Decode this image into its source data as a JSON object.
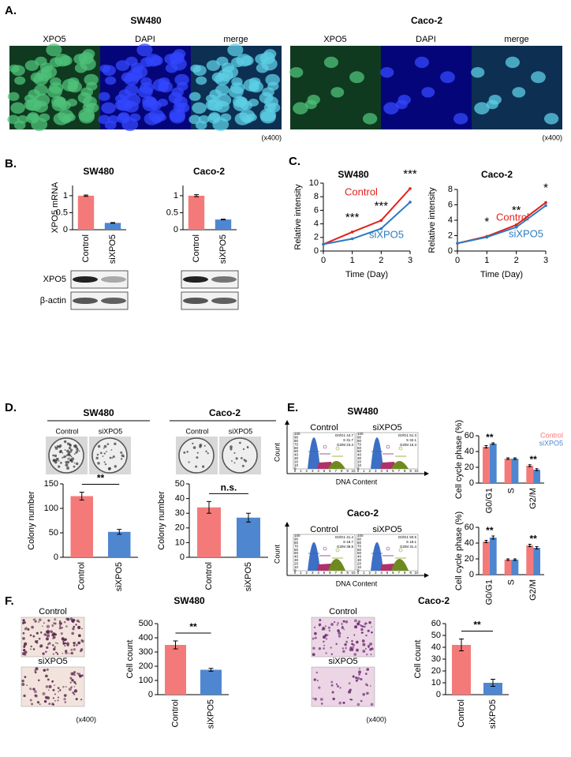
{
  "panel_labels": [
    "A.",
    "B.",
    "C.",
    "D.",
    "E.",
    "F."
  ],
  "panel_a": {
    "cell_lines": [
      "SW480",
      "Caco-2"
    ],
    "channels": [
      "XPO5",
      "DAPI",
      "merge"
    ],
    "magnification": "(x400)"
  },
  "panel_b": {
    "blot_labels": [
      "XPO5",
      "β-actin"
    ]
  },
  "panel_d": {
    "plate_labels": [
      "Control",
      "siXPO5"
    ]
  },
  "panel_e": {
    "titles": [
      "SW480",
      "Caco-2"
    ],
    "flow_labels": [
      "Control",
      "siXPO5"
    ],
    "count_label": "Count",
    "x_label": "DNA Content",
    "flow_xticks": [
      0,
      1,
      2,
      3,
      4,
      5,
      6,
      7,
      8,
      9,
      10
    ],
    "flow_yticks": [
      0,
      10,
      20,
      30,
      40,
      50,
      60,
      70,
      80,
      90,
      100
    ],
    "flow_stats": [
      [
        [
          "G0/G1 44.7",
          "S 31.7",
          "G2/M 23.3"
        ],
        [
          "G0/G1 51.3",
          "S 32.1",
          "G2/M 16.3"
        ]
      ],
      [
        [
          "G0/G1 41.4",
          "S 18.7",
          "G2/M 39.9"
        ],
        [
          "G0/G1 50.5",
          "S 18.1",
          "G2/M 31.4"
        ]
      ]
    ]
  },
  "panel_f": {
    "titles": [
      "SW480",
      "Caco-2"
    ],
    "image_labels": [
      "Control",
      "siXPO5"
    ],
    "magnification": "(x400)"
  },
  "chart_data": [
    {
      "type": "bar",
      "title": "SW480",
      "categories": [
        "Control",
        "siXPO5"
      ],
      "values": [
        1,
        0.2
      ],
      "errors": [
        0.02,
        0.01
      ],
      "colors": [
        "#f47a7a",
        "#4f86d0"
      ],
      "ylim": [
        0,
        1.3
      ],
      "yticks": [
        0,
        0.5,
        1
      ],
      "ylabel": "XPO5 mRNA"
    },
    {
      "type": "bar",
      "title": "Caco-2",
      "categories": [
        "Control",
        "siXPO5"
      ],
      "values": [
        1,
        0.3
      ],
      "errors": [
        0.03,
        0.01
      ],
      "colors": [
        "#f47a7a",
        "#4f86d0"
      ],
      "ylim": [
        0,
        1.3
      ],
      "yticks": [
        0,
        0.5,
        1
      ]
    },
    {
      "type": "line",
      "title": "SW480",
      "x": [
        0,
        1,
        2,
        3
      ],
      "xlim": [
        0,
        3
      ],
      "xticks": [
        0,
        1,
        2,
        3
      ],
      "series": [
        {
          "name": "Control",
          "color": "#e3211c",
          "values": [
            1,
            2.8,
            4.5,
            9.2
          ]
        },
        {
          "name": "siXPO5",
          "color": "#2b7bc1",
          "values": [
            1,
            1.8,
            3.3,
            7.2
          ]
        }
      ],
      "ylim": [
        0,
        10
      ],
      "yticks": [
        0,
        2,
        4,
        6,
        8,
        10
      ],
      "xlabel": "Time (Day)",
      "ylabel": "Relative intensity",
      "annotations": [
        null,
        "***",
        "***",
        "***"
      ]
    },
    {
      "type": "line",
      "title": "Caco-2",
      "x": [
        0,
        1,
        2,
        3
      ],
      "xlim": [
        0,
        3
      ],
      "xticks": [
        0,
        1,
        2,
        3
      ],
      "series": [
        {
          "name": "Control",
          "color": "#e3211c",
          "values": [
            1,
            1.9,
            3.4,
            6.3
          ]
        },
        {
          "name": "siXPO5",
          "color": "#2b7bc1",
          "values": [
            1,
            1.8,
            3.1,
            5.9
          ]
        }
      ],
      "ylim": [
        0,
        8
      ],
      "yticks": [
        0,
        2,
        4,
        6,
        8
      ],
      "xlabel": "Time (Day)",
      "ylabel": "Relative intensity",
      "annotations": [
        null,
        "*",
        "**",
        "*"
      ]
    },
    {
      "type": "bar",
      "title": "SW480",
      "categories": [
        "Control",
        "siXPO5"
      ],
      "values": [
        125,
        52
      ],
      "errors": [
        8,
        5
      ],
      "colors": [
        "#f47a7a",
        "#4f86d0"
      ],
      "ylim": [
        0,
        150
      ],
      "yticks": [
        0,
        50,
        100,
        150
      ],
      "ylabel": "Colony number",
      "significance": "**"
    },
    {
      "type": "bar",
      "title": "Caco-2",
      "categories": [
        "Control",
        "siXPO5"
      ],
      "values": [
        34,
        27
      ],
      "errors": [
        4,
        3
      ],
      "colors": [
        "#f47a7a",
        "#4f86d0"
      ],
      "ylim": [
        0,
        50
      ],
      "yticks": [
        0,
        10,
        20,
        30,
        40,
        50
      ],
      "ylabel": "Colony number",
      "significance": "n.s."
    },
    {
      "type": "bar",
      "categories": [
        "G0/G1",
        "S",
        "G2/M"
      ],
      "series": [
        {
          "name": "Control",
          "color": "#f47a7a",
          "values": [
            46,
            31,
            22
          ],
          "errors": [
            1.5,
            1,
            1.2
          ]
        },
        {
          "name": "siXPO5",
          "color": "#4f86d0",
          "values": [
            50,
            31,
            17
          ],
          "errors": [
            1,
            1,
            1.2
          ]
        }
      ],
      "ylim": [
        0,
        60
      ],
      "yticks": [
        0,
        20,
        40,
        60
      ],
      "ylabel": "Cell cycle phase (%)",
      "legend": "top-right",
      "annotations": [
        "**",
        null,
        "**"
      ]
    },
    {
      "type": "bar",
      "categories": [
        "G0/G1",
        "S",
        "G2/M"
      ],
      "series": [
        {
          "color": "#f47a7a",
          "values": [
            42,
            19,
            37
          ],
          "errors": [
            1.5,
            1,
            1.5
          ]
        },
        {
          "color": "#4f86d0",
          "values": [
            47,
            19,
            34
          ],
          "errors": [
            2,
            1,
            1.5
          ]
        }
      ],
      "ylim": [
        0,
        60
      ],
      "yticks": [
        0,
        20,
        40,
        60
      ],
      "ylabel": "Cell cycle phase (%)",
      "annotations": [
        "**",
        null,
        "**"
      ]
    },
    {
      "type": "bar",
      "categories": [
        "Control",
        "siXPO5"
      ],
      "values": [
        350,
        175
      ],
      "errors": [
        28,
        10
      ],
      "colors": [
        "#f47a7a",
        "#4f86d0"
      ],
      "ylim": [
        0,
        500
      ],
      "yticks": [
        0,
        100,
        200,
        300,
        400,
        500
      ],
      "ylabel": "Cell count",
      "significance": "**"
    },
    {
      "type": "bar",
      "categories": [
        "Control",
        "siXPO5"
      ],
      "values": [
        42,
        10
      ],
      "errors": [
        5,
        3
      ],
      "colors": [
        "#f47a7a",
        "#4f86d0"
      ],
      "ylim": [
        0,
        60
      ],
      "yticks": [
        0,
        10,
        20,
        30,
        40,
        50,
        60
      ],
      "ylabel": "Cell count",
      "significance": "**"
    }
  ]
}
